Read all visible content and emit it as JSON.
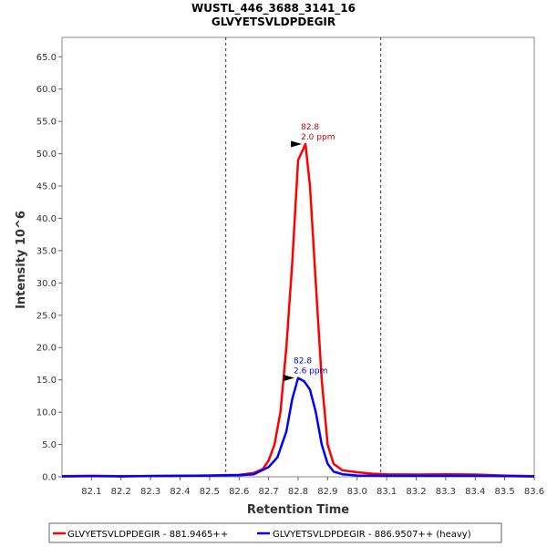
{
  "chart_data": {
    "type": "line",
    "title": "WUSTL_446_3688_3141_16",
    "subtitle": "GLVYETSVLDPDEGIR",
    "xlabel": "Retention Time",
    "ylabel": "Intensity 10^6",
    "xlim": [
      82.0,
      83.6
    ],
    "ylim": [
      0,
      68
    ],
    "x_ticks": [
      "82.1",
      "82.2",
      "82.3",
      "82.4",
      "82.5",
      "82.6",
      "82.7",
      "82.8",
      "82.9",
      "83.0",
      "83.1",
      "83.2",
      "83.3",
      "83.4",
      "83.5",
      "83.6"
    ],
    "y_ticks": [
      "0.0",
      "5.0",
      "10.0",
      "15.0",
      "20.0",
      "25.0",
      "30.0",
      "35.0",
      "40.0",
      "45.0",
      "50.0",
      "55.0",
      "60.0",
      "65.0"
    ],
    "boundaries": [
      82.555,
      83.08
    ],
    "legend_position": "bottom",
    "series": [
      {
        "name": "GLVYETSVLDPDEGIR - 881.9465++",
        "color": "#ff0000",
        "points": [
          [
            82.0,
            0.1
          ],
          [
            82.1,
            0.15
          ],
          [
            82.2,
            0.1
          ],
          [
            82.3,
            0.12
          ],
          [
            82.4,
            0.15
          ],
          [
            82.5,
            0.2
          ],
          [
            82.6,
            0.3
          ],
          [
            82.65,
            0.6
          ],
          [
            82.68,
            1.2
          ],
          [
            82.7,
            2.5
          ],
          [
            82.72,
            5
          ],
          [
            82.74,
            10
          ],
          [
            82.76,
            20
          ],
          [
            82.78,
            33
          ],
          [
            82.8,
            49
          ],
          [
            82.825,
            51.5
          ],
          [
            82.84,
            45
          ],
          [
            82.86,
            30
          ],
          [
            82.88,
            15
          ],
          [
            82.9,
            5
          ],
          [
            82.92,
            2
          ],
          [
            82.95,
            1
          ],
          [
            83.0,
            0.7
          ],
          [
            83.05,
            0.5
          ],
          [
            83.1,
            0.4
          ],
          [
            83.2,
            0.35
          ],
          [
            83.3,
            0.4
          ],
          [
            83.4,
            0.35
          ],
          [
            83.5,
            0.2
          ],
          [
            83.6,
            0.1
          ]
        ]
      },
      {
        "name": "GLVYETSVLDPDEGIR - 886.9507++ (heavy)",
        "color": "#0000ff",
        "points": [
          [
            82.0,
            0.05
          ],
          [
            82.1,
            0.1
          ],
          [
            82.2,
            0.05
          ],
          [
            82.3,
            0.12
          ],
          [
            82.4,
            0.15
          ],
          [
            82.5,
            0.2
          ],
          [
            82.6,
            0.25
          ],
          [
            82.65,
            0.4
          ],
          [
            82.7,
            1.5
          ],
          [
            82.73,
            3
          ],
          [
            82.76,
            7
          ],
          [
            82.78,
            12
          ],
          [
            82.8,
            15.3
          ],
          [
            82.82,
            14.8
          ],
          [
            82.84,
            13.5
          ],
          [
            82.86,
            10
          ],
          [
            82.88,
            5
          ],
          [
            82.9,
            2
          ],
          [
            82.92,
            0.8
          ],
          [
            82.95,
            0.4
          ],
          [
            83.0,
            0.2
          ],
          [
            83.1,
            0.15
          ],
          [
            83.2,
            0.15
          ],
          [
            83.3,
            0.15
          ],
          [
            83.4,
            0.15
          ],
          [
            83.5,
            0.1
          ],
          [
            83.6,
            0.05
          ]
        ]
      }
    ],
    "annotations": [
      {
        "lines": [
          "82.8",
          "2.0 ppm"
        ],
        "x": 82.825,
        "y": 51.5,
        "color": "#cc0000"
      },
      {
        "lines": [
          "82.8",
          "2.6 ppm"
        ],
        "x": 82.8,
        "y": 15.3,
        "color": "#0000cc"
      }
    ]
  }
}
